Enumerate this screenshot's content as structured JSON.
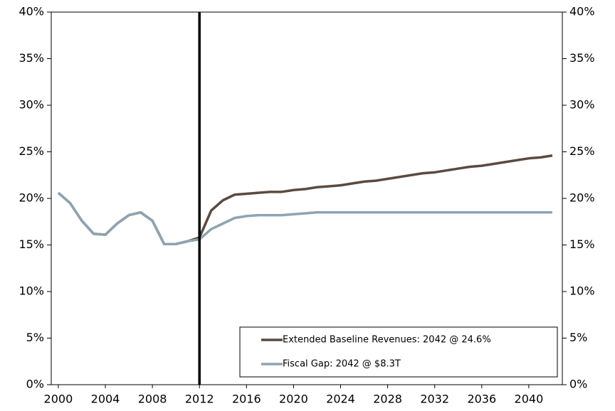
{
  "chart_data": {
    "type": "line",
    "x": [
      2000,
      2001,
      2002,
      2003,
      2004,
      2005,
      2006,
      2007,
      2008,
      2009,
      2010,
      2011,
      2012,
      2013,
      2014,
      2015,
      2016,
      2017,
      2018,
      2019,
      2020,
      2021,
      2022,
      2023,
      2024,
      2025,
      2026,
      2027,
      2028,
      2029,
      2030,
      2031,
      2032,
      2033,
      2034,
      2035,
      2036,
      2037,
      2038,
      2039,
      2040,
      2041,
      2042
    ],
    "series": [
      {
        "name": "Extended Baseline Revenues: 2042 @ 24.6%",
        "color": "#5b4a3f",
        "values": [
          20.6,
          19.5,
          17.6,
          16.2,
          16.1,
          17.3,
          18.2,
          18.5,
          17.6,
          15.1,
          15.1,
          15.4,
          15.8,
          18.7,
          19.8,
          20.4,
          20.5,
          20.6,
          20.7,
          20.7,
          20.9,
          21.0,
          21.2,
          21.3,
          21.4,
          21.6,
          21.8,
          21.9,
          22.1,
          22.3,
          22.5,
          22.7,
          22.8,
          23.0,
          23.2,
          23.4,
          23.5,
          23.7,
          23.9,
          24.1,
          24.3,
          24.4,
          24.6
        ]
      },
      {
        "name": "Fiscal Gap: 2042 @ $8.3T",
        "color": "#8fa3b0",
        "values": [
          20.6,
          19.5,
          17.6,
          16.2,
          16.1,
          17.3,
          18.2,
          18.5,
          17.6,
          15.1,
          15.1,
          15.4,
          15.6,
          16.7,
          17.3,
          17.9,
          18.1,
          18.2,
          18.2,
          18.2,
          18.3,
          18.4,
          18.5,
          18.5,
          18.5,
          18.5,
          18.5,
          18.5,
          18.5,
          18.5,
          18.5,
          18.5,
          18.5,
          18.5,
          18.5,
          18.5,
          18.5,
          18.5,
          18.5,
          18.5,
          18.5,
          18.5,
          18.5
        ]
      }
    ],
    "xlim": [
      1999.4,
      2042.85
    ],
    "xticks": [
      2000,
      2004,
      2008,
      2012,
      2016,
      2020,
      2024,
      2028,
      2032,
      2036,
      2040
    ],
    "ylim": [
      0,
      40
    ],
    "yticks": [
      {
        "value": 0,
        "label": "0%"
      },
      {
        "value": 5,
        "label": "5%"
      },
      {
        "value": 10,
        "label": "10%"
      },
      {
        "value": 15,
        "label": "15%"
      },
      {
        "value": 20,
        "label": "20%"
      },
      {
        "value": 25,
        "label": "25%"
      },
      {
        "value": 30,
        "label": "30%"
      },
      {
        "value": 35,
        "label": "35%"
      },
      {
        "value": 40,
        "label": "40%"
      }
    ],
    "y2lim": [
      0,
      40
    ],
    "y2ticks": [
      {
        "value": 0,
        "label": "0%"
      },
      {
        "value": 5,
        "label": "5%"
      },
      {
        "value": 10,
        "label": "10%"
      },
      {
        "value": 15,
        "label": "15%"
      },
      {
        "value": 20,
        "label": "20%"
      },
      {
        "value": 25,
        "label": "25%"
      },
      {
        "value": 30,
        "label": "30%"
      },
      {
        "value": 35,
        "label": "35%"
      },
      {
        "value": 40,
        "label": "40%"
      }
    ],
    "vline": 2012,
    "legend": "lower right"
  }
}
